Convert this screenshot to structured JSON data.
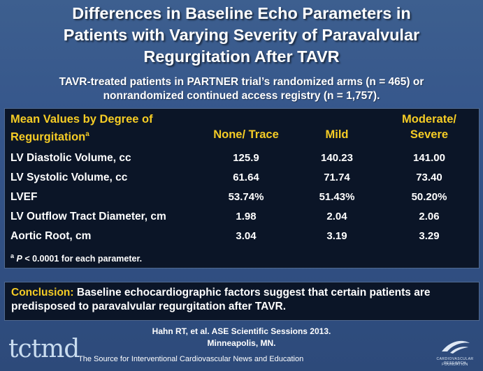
{
  "title": {
    "line1": "Differences in Baseline Echo Parameters in",
    "line2": "Patients with Varying Severity of Paravalvular",
    "line3": "Regurgitation After  TAVR"
  },
  "subtitle": {
    "line1": "TAVR-treated patients in PARTNER trial’s randomized arms (n = 465) or",
    "line2": "nonrandomized continued access registry (n = 1,757)."
  },
  "table": {
    "header_label_line1": "Mean Values by Degree of",
    "header_label_line2": "Regurgitation",
    "header_label_sup": "a",
    "columns": [
      {
        "line1": "",
        "line2": "None/ Trace"
      },
      {
        "line1": "",
        "line2": "Mild"
      },
      {
        "line1": "Moderate/",
        "line2": "Severe"
      }
    ],
    "rows": [
      {
        "label": "LV Diastolic Volume, cc",
        "values": [
          "125.9",
          "140.23",
          "141.00"
        ]
      },
      {
        "label": "LV Systolic Volume, cc",
        "values": [
          "61.64",
          "71.74",
          "73.40"
        ]
      },
      {
        "label": "LVEF",
        "values": [
          "53.74%",
          "51.43%",
          "50.20%"
        ]
      },
      {
        "label": "LV Outflow Tract Diameter, cm",
        "values": [
          "1.98",
          "2.04",
          "2.06"
        ]
      },
      {
        "label": "Aortic Root, cm",
        "values": [
          "3.04",
          "3.19",
          "3.29"
        ]
      }
    ],
    "footnote": {
      "sup": "a",
      "p": "P",
      "text": " < 0.0001 for each parameter."
    }
  },
  "conclusion": {
    "label": "Conclusion:",
    "text": "  Baseline echocardiographic factors suggest that certain patients are predisposed to paravalvular regurgitation after TAVR."
  },
  "citation": {
    "line1": "Hahn RT, et al. ASE Scientific Sessions 2013.",
    "line2": "Minneapolis, MN."
  },
  "footer": {
    "logo": "tctmd",
    "tagline": "The Source for Interventional Cardiovascular News and Education",
    "foundation_line1": "CARDIOVASCULAR RESEARCH",
    "foundation_line2": "FOUNDATION"
  },
  "colors": {
    "accent": "#f5cc25",
    "panel": "#0b1527",
    "background": "#34548a"
  }
}
